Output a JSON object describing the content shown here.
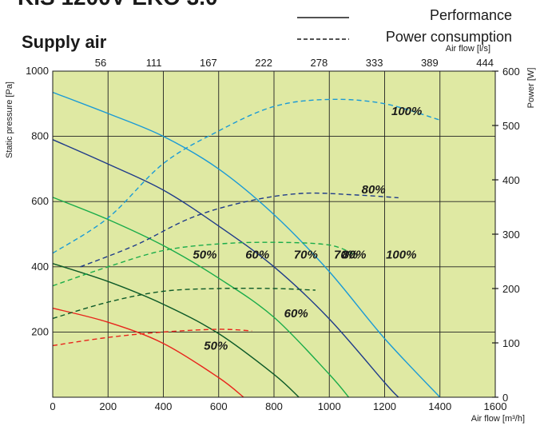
{
  "chart_data": {
    "type": "line",
    "title": "KIS 1200V EKO 3.0",
    "subtitle": "Supply air",
    "legend": {
      "placement": "top-right",
      "items": [
        {
          "label": "Performance",
          "style": "solid"
        },
        {
          "label": "Power consumption",
          "style": "dashed"
        }
      ]
    },
    "x_axis": {
      "label": "Air flow [m³/h]",
      "range": [
        0,
        1600
      ],
      "ticks": [
        "0",
        "200",
        "400",
        "600",
        "800",
        "1000",
        "1200",
        "1400",
        "1600"
      ]
    },
    "x2_axis": {
      "label": "Air flow [l/s]",
      "ticks": [
        "56",
        "111",
        "167",
        "222",
        "278",
        "333",
        "389",
        "444"
      ]
    },
    "y_axis": {
      "label": "Static pressure [Pa]",
      "range": [
        0,
        1000
      ],
      "ticks": [
        "200",
        "400",
        "600",
        "800",
        "1000"
      ]
    },
    "y2_axis": {
      "label": "Power [W]",
      "range": [
        0,
        600
      ],
      "ticks": [
        "0",
        "100",
        "200",
        "300",
        "400",
        "500",
        "600"
      ]
    },
    "grid": true,
    "background": "#dfe9a3",
    "series": [
      {
        "name": "100%",
        "kind": "performance",
        "color": "#1a9ad6",
        "x": [
          0,
          200,
          400,
          600,
          800,
          1000,
          1200,
          1400
        ],
        "y": [
          935,
          870,
          800,
          700,
          560,
          385,
          180,
          0
        ]
      },
      {
        "name": "80%",
        "kind": "performance",
        "color": "#1f3b8a",
        "x": [
          0,
          200,
          400,
          600,
          800,
          1000,
          1200,
          1250
        ],
        "y": [
          790,
          715,
          635,
          525,
          400,
          240,
          45,
          0
        ]
      },
      {
        "name": "70%",
        "kind": "performance",
        "color": "#1aac4a",
        "x": [
          0,
          200,
          400,
          600,
          800,
          1000,
          1070
        ],
        "y": [
          613,
          545,
          465,
          365,
          245,
          70,
          0
        ]
      },
      {
        "name": "60%",
        "kind": "performance",
        "color": "#0d5a28",
        "x": [
          0,
          200,
          400,
          600,
          800,
          890
        ],
        "y": [
          410,
          355,
          285,
          195,
          70,
          0
        ]
      },
      {
        "name": "50%",
        "kind": "performance",
        "color": "#e8241c",
        "x": [
          0,
          200,
          400,
          600,
          690
        ],
        "y": [
          273,
          230,
          165,
          60,
          0
        ]
      },
      {
        "name": "100%",
        "kind": "power",
        "color": "#1a9ad6",
        "x": [
          0,
          200,
          400,
          600,
          800,
          1000,
          1200,
          1400
        ],
        "y": [
          265,
          330,
          430,
          490,
          535,
          548,
          540,
          510
        ]
      },
      {
        "name": "80%",
        "kind": "power",
        "color": "#1f3b8a",
        "x": [
          100,
          300,
          500,
          700,
          900,
          1100,
          1250
        ],
        "y": [
          240,
          280,
          330,
          360,
          375,
          372,
          367
        ]
      },
      {
        "name": "70%",
        "kind": "power",
        "color": "#1aac4a",
        "x": [
          0,
          200,
          400,
          600,
          800,
          1000,
          1100
        ],
        "y": [
          205,
          240,
          270,
          282,
          285,
          280,
          260
        ]
      },
      {
        "name": "60%",
        "kind": "power",
        "color": "#0d5a28",
        "x": [
          0,
          200,
          400,
          600,
          800,
          950
        ],
        "y": [
          145,
          175,
          195,
          200,
          200,
          197
        ]
      },
      {
        "name": "50%",
        "kind": "power",
        "color": "#e8241c",
        "x": [
          0,
          200,
          400,
          600,
          720
        ],
        "y": [
          95,
          110,
          120,
          125,
          122
        ]
      }
    ],
    "annotations": [
      {
        "text": "100%",
        "x": 1260,
        "y": 0.44
      },
      {
        "text": "80%",
        "x": 1090,
        "y": 0.44
      },
      {
        "text": "70%",
        "x": 915,
        "y": 0.44
      },
      {
        "text": "60%",
        "x": 740,
        "y": 0.44
      },
      {
        "text": "50%",
        "x": 550,
        "y": 0.44
      },
      {
        "text": "100%",
        "x": 1280,
        "y": 0.88
      },
      {
        "text": "80%",
        "x": 1160,
        "y": 0.64
      },
      {
        "text": "70%",
        "x": 1060,
        "y": 0.44
      },
      {
        "text": "60%",
        "x": 880,
        "y": 0.26
      },
      {
        "text": "50%",
        "x": 590,
        "y": 0.16
      }
    ]
  }
}
